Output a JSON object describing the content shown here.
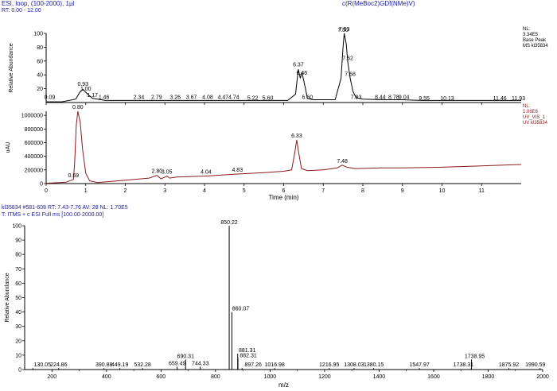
{
  "header": {
    "left": "ESI, loop, (100-2000), 1µl",
    "rt": "RT: 0.00 - 12.00",
    "right": "c(R(MeBoc2)GDf(NMe)V)",
    "spectrum_line1": "kl35834 #581-608  RT: 7.43-7.76  AV: 28  NL: 1.70E5",
    "spectrum_line2": "T: ITMS + c ESI Full ms [100.00-2000.00]"
  },
  "chart_data": [
    {
      "type": "line",
      "panel": "ms-chromatogram",
      "ylabel": "Relative Abundance",
      "xlim": [
        0,
        12
      ],
      "ylim": [
        0,
        100
      ],
      "yticks": [
        20,
        40,
        60,
        80,
        100
      ],
      "info": [
        "NL:",
        "3.34E5",
        "Base Peak",
        "MS kl35834"
      ],
      "x": [
        0.0,
        0.4,
        0.75,
        0.85,
        0.93,
        1.05,
        1.17,
        1.5,
        2.0,
        3.0,
        4.0,
        5.0,
        5.6,
        6.1,
        6.3,
        6.37,
        6.42,
        6.46,
        6.55,
        6.6,
        6.75,
        7.0,
        7.3,
        7.45,
        7.5,
        7.53,
        7.58,
        7.62,
        7.68,
        7.75,
        7.83,
        8.0,
        8.5,
        9.0,
        9.5,
        10.0,
        11.0,
        12.0
      ],
      "y": [
        1,
        1,
        5,
        15,
        19,
        12,
        6,
        3,
        3,
        3,
        3,
        3,
        3,
        3,
        12,
        48,
        35,
        44,
        20,
        6,
        4,
        4,
        4,
        35,
        80,
        100,
        85,
        58,
        35,
        16,
        7,
        5,
        4,
        4,
        3,
        3,
        3,
        3
      ],
      "peak_labels": [
        {
          "x": 0.09,
          "label": "0.09",
          "y": 3
        },
        {
          "x": 0.93,
          "label": "0.93",
          "y": 22
        },
        {
          "x": 1.0,
          "label": "1.00",
          "y": 15
        },
        {
          "x": 1.17,
          "label": "1.17",
          "y": 6
        },
        {
          "x": 1.46,
          "label": "1.46",
          "y": 3
        },
        {
          "x": 2.34,
          "label": "2.34",
          "y": 3
        },
        {
          "x": 2.79,
          "label": "2.79",
          "y": 3
        },
        {
          "x": 3.26,
          "label": "3.26",
          "y": 3
        },
        {
          "x": 3.67,
          "label": "3.67",
          "y": 3
        },
        {
          "x": 4.08,
          "label": "4.08",
          "y": 3
        },
        {
          "x": 4.47,
          "label": "4.47",
          "y": 3
        },
        {
          "x": 4.74,
          "label": "4.74",
          "y": 3
        },
        {
          "x": 5.22,
          "label": "5.22",
          "y": 2
        },
        {
          "x": 5.6,
          "label": "5.60",
          "y": 2
        },
        {
          "x": 6.37,
          "label": "6.37",
          "y": 50
        },
        {
          "x": 6.46,
          "label": "6.46",
          "y": 38
        },
        {
          "x": 6.6,
          "label": "6.60",
          "y": 3
        },
        {
          "x": 7.5,
          "label": "7.50",
          "y": 100
        },
        {
          "x": 7.53,
          "label": "7.53",
          "y": 101
        },
        {
          "x": 7.62,
          "label": "7.62",
          "y": 59
        },
        {
          "x": 7.68,
          "label": "7.68",
          "y": 36
        },
        {
          "x": 7.83,
          "label": "7.83",
          "y": 3
        },
        {
          "x": 8.44,
          "label": "8.44",
          "y": 3
        },
        {
          "x": 8.78,
          "label": "8.78",
          "y": 3
        },
        {
          "x": 9.04,
          "label": "9.04",
          "y": 3
        },
        {
          "x": 9.55,
          "label": "9.55",
          "y": 1
        },
        {
          "x": 10.13,
          "label": "10.13",
          "y": 1
        },
        {
          "x": 11.46,
          "label": "11.46",
          "y": 1
        },
        {
          "x": 11.93,
          "label": "11.93",
          "y": 1
        }
      ]
    },
    {
      "type": "line",
      "panel": "uv-chromatogram",
      "ylabel": "uAU",
      "xlabel": "Time (min)",
      "xlim": [
        0,
        12
      ],
      "ylim": [
        0,
        1060000
      ],
      "yticks": [
        0,
        200000,
        400000,
        600000,
        800000,
        1000000
      ],
      "ytick_labels": [
        "0",
        "200000",
        "400000",
        "600000",
        "800000",
        "1000000"
      ],
      "xticks": [
        0,
        1,
        2,
        3,
        4,
        5,
        6,
        7,
        8,
        9,
        10,
        11
      ],
      "info": [
        "NL:",
        "1.06E6",
        "UV_VIS_1",
        "UV kl35834"
      ],
      "x": [
        0.0,
        0.5,
        0.69,
        0.72,
        0.76,
        0.8,
        0.86,
        0.92,
        1.0,
        1.1,
        1.3,
        1.5,
        2.0,
        2.6,
        2.8,
        2.9,
        3.0,
        3.05,
        3.12,
        3.3,
        4.0,
        4.83,
        5.5,
        6.0,
        6.2,
        6.28,
        6.33,
        6.38,
        6.45,
        6.6,
        7.0,
        7.35,
        7.48,
        7.6,
        7.8,
        8.5,
        9.0,
        10.0,
        11.0,
        12.0
      ],
      "y": [
        5000,
        20000,
        60000,
        300000,
        850000,
        1060000,
        900000,
        500000,
        150000,
        40000,
        15000,
        25000,
        50000,
        80000,
        120000,
        70000,
        95000,
        110000,
        80000,
        95000,
        110000,
        140000,
        160000,
        180000,
        200000,
        450000,
        640000,
        450000,
        220000,
        190000,
        200000,
        230000,
        270000,
        240000,
        220000,
        230000,
        230000,
        240000,
        260000,
        280000
      ],
      "peak_labels": [
        {
          "x": 0.69,
          "label": "0.69",
          "y": 60000
        },
        {
          "x": 0.8,
          "label": "0.80",
          "y": 1060000
        },
        {
          "x": 2.8,
          "label": "2.80",
          "y": 120000
        },
        {
          "x": 3.05,
          "label": "3.05",
          "y": 110000
        },
        {
          "x": 4.04,
          "label": "4.04",
          "y": 110000
        },
        {
          "x": 4.83,
          "label": "4.83",
          "y": 140000
        },
        {
          "x": 6.33,
          "label": "6.33",
          "y": 640000
        },
        {
          "x": 7.48,
          "label": "7.48",
          "y": 270000
        }
      ]
    },
    {
      "type": "bar",
      "panel": "mass-spectrum",
      "ylabel": "Relative Abundance",
      "xlabel": "m/z",
      "xlim": [
        100,
        2000
      ],
      "ylim": [
        0,
        100
      ],
      "yticks": [
        0,
        10,
        20,
        30,
        40,
        50,
        60,
        70,
        80,
        90,
        100
      ],
      "xticks": [
        200,
        400,
        600,
        800,
        1000,
        1200,
        1400,
        1600,
        1800,
        2000
      ],
      "peaks": [
        {
          "mz": 130.05,
          "intensity": 1
        },
        {
          "mz": 224.86,
          "intensity": 1
        },
        {
          "mz": 390.88,
          "intensity": 1
        },
        {
          "mz": 449.19,
          "intensity": 1
        },
        {
          "mz": 532.28,
          "intensity": 1
        },
        {
          "mz": 659.49,
          "intensity": 2
        },
        {
          "mz": 690.31,
          "intensity": 7
        },
        {
          "mz": 744.33,
          "intensity": 2
        },
        {
          "mz": 850.22,
          "intensity": 100
        },
        {
          "mz": 860.07,
          "intensity": 40
        },
        {
          "mz": 881.31,
          "intensity": 11
        },
        {
          "mz": 882.31,
          "intensity": 8
        },
        {
          "mz": 897.26,
          "intensity": 1
        },
        {
          "mz": 1016.98,
          "intensity": 1
        },
        {
          "mz": 1216.95,
          "intensity": 1
        },
        {
          "mz": 1308.03,
          "intensity": 1
        },
        {
          "mz": 1380.15,
          "intensity": 1
        },
        {
          "mz": 1547.97,
          "intensity": 1
        },
        {
          "mz": 1738.31,
          "intensity": 1
        },
        {
          "mz": 1738.95,
          "intensity": 7
        },
        {
          "mz": 1875.92,
          "intensity": 1
        },
        {
          "mz": 1990.59,
          "intensity": 1
        }
      ]
    }
  ],
  "colors": {
    "header_text": "#1a1aa0",
    "ms_trace": "#000000",
    "ms_labels": "#000000",
    "uv_trace": "#8b1a1a",
    "uv_info": "#8b1a1a",
    "spectrum": "#000000",
    "label_link": "#2e8b2e"
  }
}
